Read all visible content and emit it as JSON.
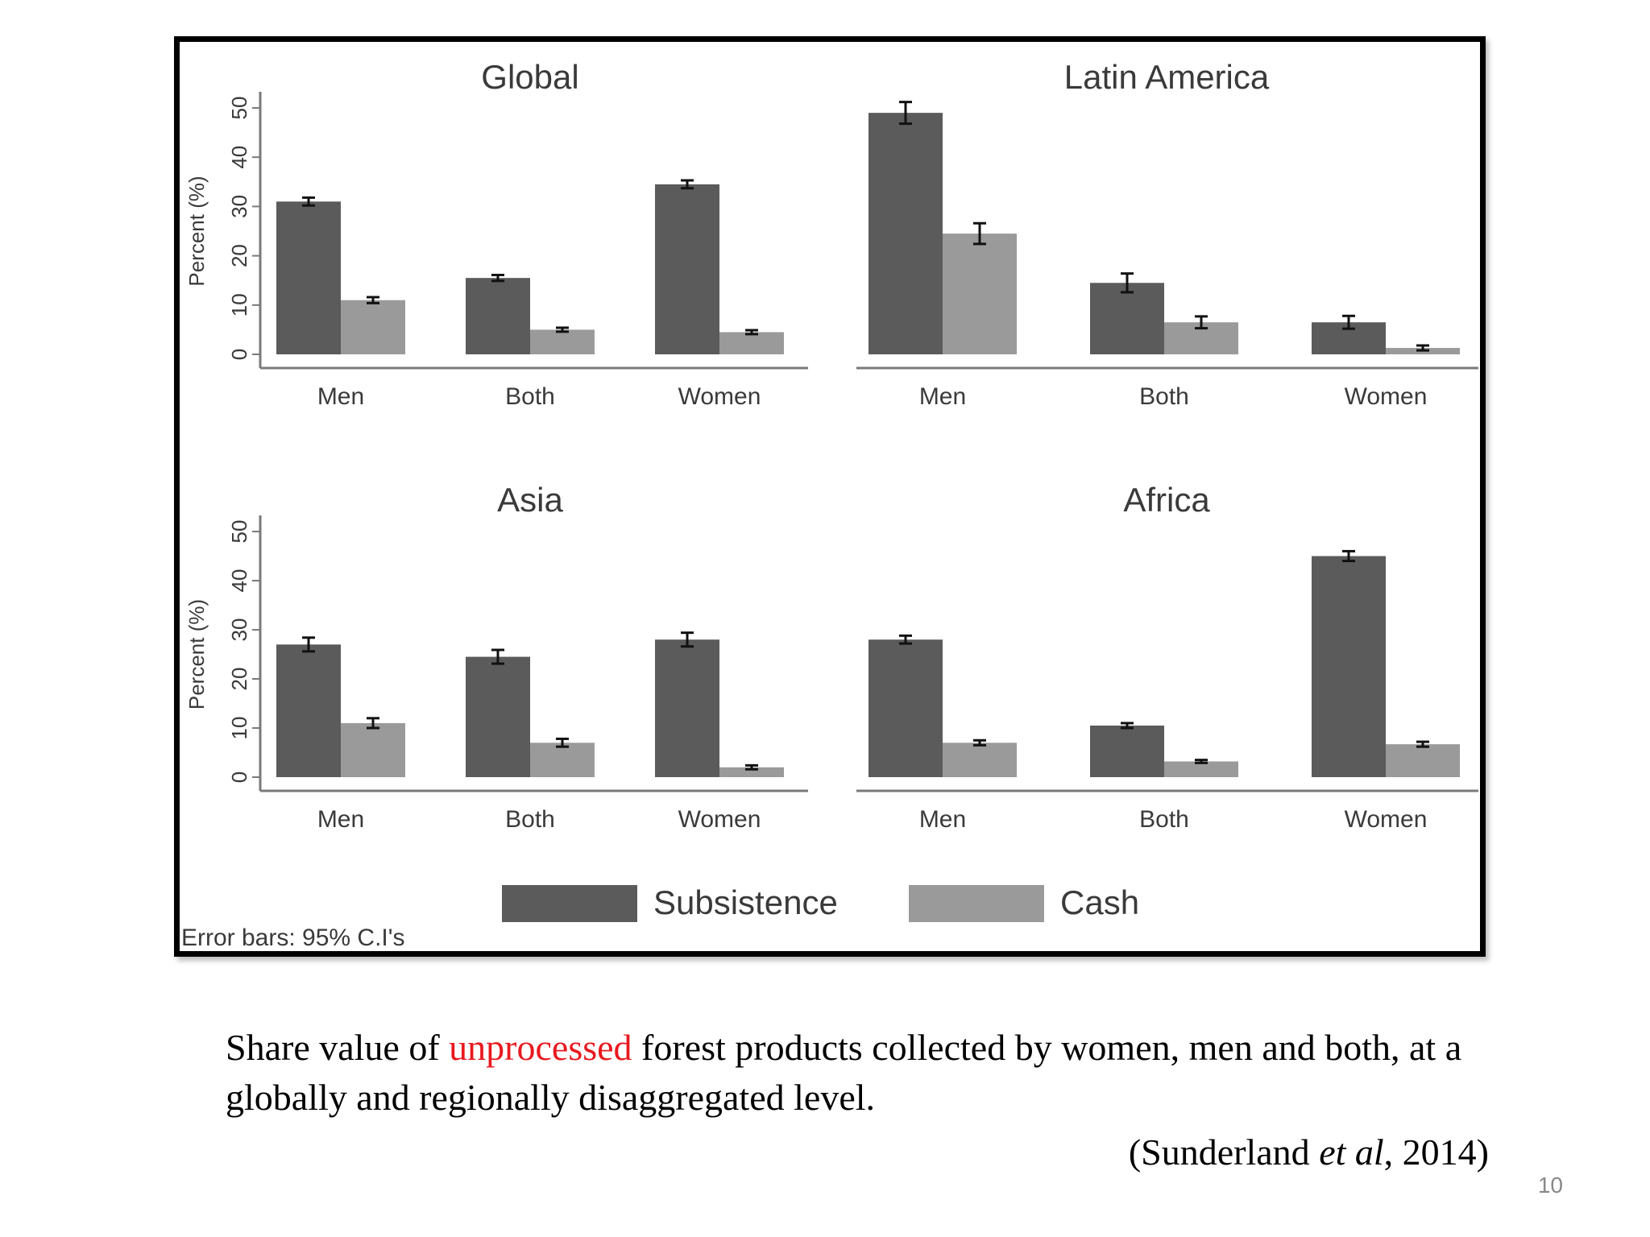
{
  "figure": {
    "note": "Error bars: 95% C.I's",
    "legend": [
      "Subsistence",
      "Cash"
    ],
    "ylabel": "Percent (%)"
  },
  "colors": {
    "subsistence": "#5b5b5b",
    "cash": "#9a9a9a",
    "axis": "#7a7a7a",
    "text": "#3a3a3a"
  },
  "chart_data": [
    {
      "type": "bar",
      "title": "Global",
      "ylabel": "Percent (%)",
      "ylim": [
        0,
        50
      ],
      "yticks": [
        0,
        10,
        20,
        30,
        40,
        50
      ],
      "categories": [
        "Men",
        "Both",
        "Women"
      ],
      "series": [
        {
          "name": "Subsistence",
          "values": [
            31,
            15.5,
            34.5
          ],
          "ci": [
            [
              30.2,
              31.8
            ],
            [
              14.9,
              16.1
            ],
            [
              33.7,
              35.3
            ]
          ]
        },
        {
          "name": "Cash",
          "values": [
            11,
            5,
            4.5
          ],
          "ci": [
            [
              10.4,
              11.6
            ],
            [
              4.6,
              5.4
            ],
            [
              4.1,
              4.9
            ]
          ]
        }
      ],
      "legend": "bottom",
      "grid": false
    },
    {
      "type": "bar",
      "title": "Latin America",
      "ylim": [
        0,
        50
      ],
      "categories": [
        "Men",
        "Both",
        "Women"
      ],
      "series": [
        {
          "name": "Subsistence",
          "values": [
            49,
            14.5,
            6.5
          ],
          "ci": [
            [
              46.8,
              51.2
            ],
            [
              12.6,
              16.4
            ],
            [
              5.2,
              7.8
            ]
          ]
        },
        {
          "name": "Cash",
          "values": [
            24.5,
            6.5,
            1.3
          ],
          "ci": [
            [
              22.4,
              26.6
            ],
            [
              5.3,
              7.7
            ],
            [
              0.8,
              1.8
            ]
          ]
        }
      ],
      "legend": "bottom",
      "grid": false
    },
    {
      "type": "bar",
      "title": "Asia",
      "ylabel": "Percent (%)",
      "ylim": [
        0,
        50
      ],
      "yticks": [
        0,
        10,
        20,
        30,
        40,
        50
      ],
      "categories": [
        "Men",
        "Both",
        "Women"
      ],
      "series": [
        {
          "name": "Subsistence",
          "values": [
            27,
            24.5,
            28
          ],
          "ci": [
            [
              25.6,
              28.4
            ],
            [
              23.1,
              25.9
            ],
            [
              26.6,
              29.4
            ]
          ]
        },
        {
          "name": "Cash",
          "values": [
            11,
            7,
            2
          ],
          "ci": [
            [
              10,
              12
            ],
            [
              6.2,
              7.8
            ],
            [
              1.6,
              2.4
            ]
          ]
        }
      ],
      "legend": "bottom",
      "grid": false
    },
    {
      "type": "bar",
      "title": "Africa",
      "ylim": [
        0,
        50
      ],
      "categories": [
        "Men",
        "Both",
        "Women"
      ],
      "series": [
        {
          "name": "Subsistence",
          "values": [
            28,
            10.5,
            45
          ],
          "ci": [
            [
              27.2,
              28.8
            ],
            [
              10,
              11
            ],
            [
              44,
              46
            ]
          ]
        },
        {
          "name": "Cash",
          "values": [
            7,
            3.2,
            6.7
          ],
          "ci": [
            [
              6.5,
              7.5
            ],
            [
              2.9,
              3.5
            ],
            [
              6.2,
              7.2
            ]
          ]
        }
      ],
      "legend": "bottom",
      "grid": false
    }
  ],
  "caption": {
    "before": "Share value of ",
    "highlight": "unprocessed",
    "after": " forest products collected by women, men and both, at a globally and regionally disaggregated level."
  },
  "citation": {
    "prefix": "(Sunderland ",
    "italic": "et al",
    "suffix": ", 2014)"
  },
  "page_number": "10"
}
